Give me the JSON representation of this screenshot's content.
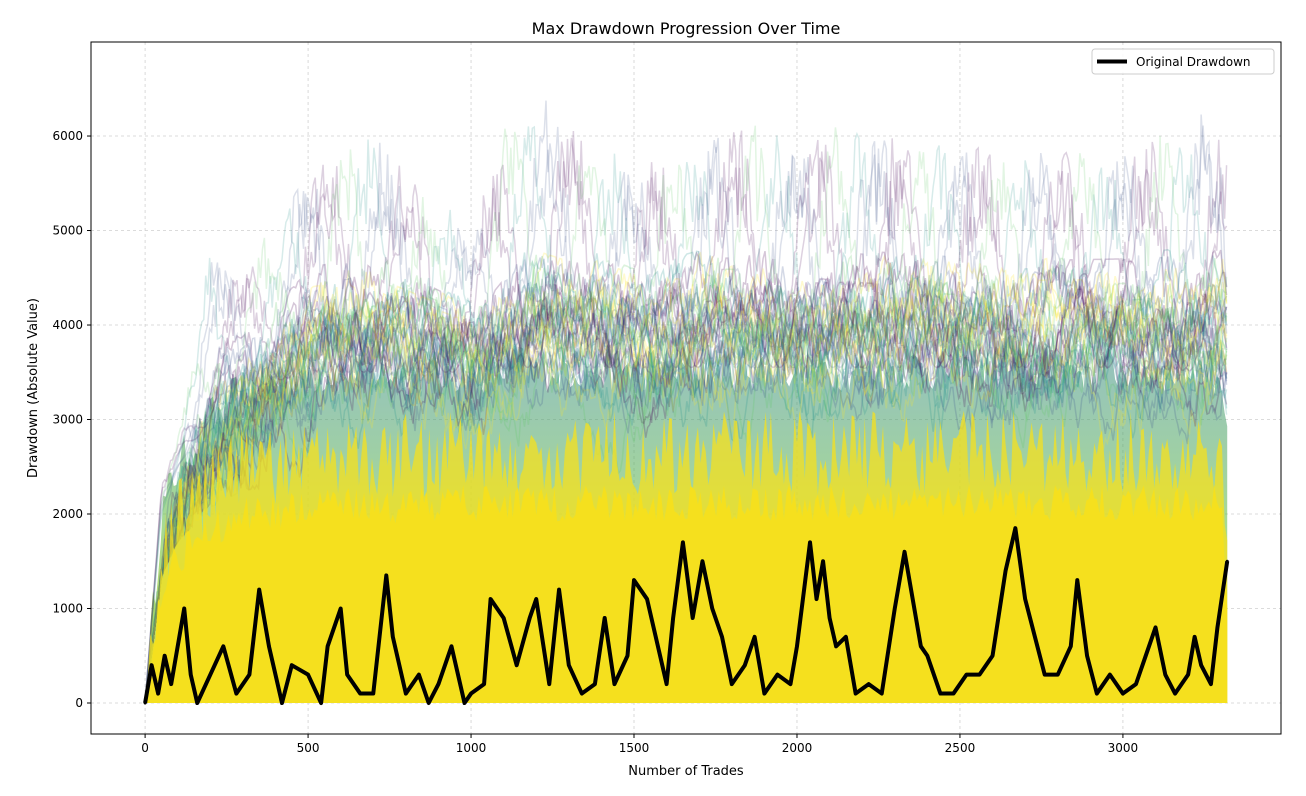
{
  "chart_data": {
    "type": "line",
    "title": "Max Drawdown Progression Over Time",
    "xlabel": "Number of Trades",
    "ylabel": "Drawdown (Absolute Value)",
    "xlim": [
      -166,
      3485
    ],
    "ylim": [
      -328,
      6995
    ],
    "xticks": [
      0,
      500,
      1000,
      1500,
      2000,
      2500,
      3000
    ],
    "yticks": [
      0,
      1000,
      2000,
      3000,
      4000,
      5000,
      6000
    ],
    "xtick_labels": [
      "0",
      "500",
      "1000",
      "1500",
      "2000",
      "2500",
      "3000"
    ],
    "ytick_labels": [
      "0",
      "1000",
      "2000",
      "3000",
      "4000",
      "5000",
      "6000"
    ],
    "grid": true,
    "legend": {
      "placement": "top-right",
      "entries": [
        "Original Drawdown"
      ]
    },
    "colors": {
      "original": "#000000",
      "sim_dense": "#f5e01e",
      "sim_palette": [
        "#440154",
        "#3b528b",
        "#21918c",
        "#5ec962",
        "#fde725"
      ]
    },
    "simulated_envelope": {
      "x": [
        0,
        50,
        100,
        200,
        300,
        500,
        700,
        1000,
        1150,
        1500,
        1730,
        1930,
        2170,
        2600,
        3000,
        3300,
        3320
      ],
      "dense_top": [
        0,
        1500,
        1900,
        2300,
        2500,
        2600,
        2600,
        2650,
        2650,
        2650,
        2650,
        2650,
        2650,
        2650,
        2650,
        2650,
        1500
      ],
      "mid_top": [
        0,
        2000,
        2500,
        3000,
        3300,
        3500,
        3500,
        3500,
        3550,
        3550,
        3550,
        3550,
        3550,
        3550,
        3550,
        3500,
        3000
      ],
      "max": [
        0,
        2300,
        2800,
        4900,
        4500,
        5800,
        6100,
        5000,
        6650,
        5700,
        6150,
        6100,
        6150,
        5900,
        5950,
        6300,
        5850
      ]
    },
    "series": [
      {
        "name": "Original Drawdown",
        "x": [
          0,
          20,
          40,
          60,
          80,
          100,
          120,
          140,
          160,
          200,
          240,
          280,
          320,
          350,
          380,
          420,
          450,
          500,
          540,
          560,
          600,
          620,
          660,
          700,
          740,
          760,
          800,
          840,
          870,
          900,
          940,
          980,
          1000,
          1040,
          1060,
          1100,
          1140,
          1180,
          1200,
          1240,
          1270,
          1300,
          1340,
          1380,
          1410,
          1440,
          1480,
          1500,
          1540,
          1560,
          1600,
          1620,
          1650,
          1680,
          1710,
          1740,
          1770,
          1800,
          1840,
          1870,
          1900,
          1940,
          1980,
          2000,
          2040,
          2060,
          2080,
          2100,
          2120,
          2150,
          2180,
          2220,
          2260,
          2300,
          2330,
          2350,
          2380,
          2400,
          2440,
          2480,
          2520,
          2560,
          2600,
          2640,
          2670,
          2700,
          2730,
          2760,
          2800,
          2840,
          2860,
          2890,
          2920,
          2960,
          3000,
          3040,
          3080,
          3100,
          3130,
          3160,
          3200,
          3220,
          3240,
          3270,
          3290,
          3320
        ],
        "y": [
          0,
          400,
          100,
          500,
          200,
          600,
          1000,
          300,
          0,
          300,
          600,
          100,
          300,
          1200,
          600,
          0,
          400,
          300,
          0,
          600,
          1000,
          300,
          100,
          100,
          1350,
          700,
          100,
          300,
          0,
          200,
          600,
          0,
          100,
          200,
          1100,
          900,
          400,
          900,
          1100,
          200,
          1200,
          400,
          100,
          200,
          900,
          200,
          500,
          1300,
          1100,
          800,
          200,
          900,
          1700,
          900,
          1500,
          1000,
          700,
          200,
          400,
          700,
          100,
          300,
          200,
          600,
          1700,
          1100,
          1500,
          900,
          600,
          700,
          100,
          200,
          100,
          1000,
          1600,
          1200,
          600,
          500,
          100,
          100,
          300,
          300,
          500,
          1400,
          1850,
          1100,
          700,
          300,
          300,
          600,
          1300,
          500,
          100,
          300,
          100,
          200,
          600,
          800,
          300,
          100,
          300,
          700,
          400,
          200,
          800,
          1500
        ]
      }
    ]
  }
}
